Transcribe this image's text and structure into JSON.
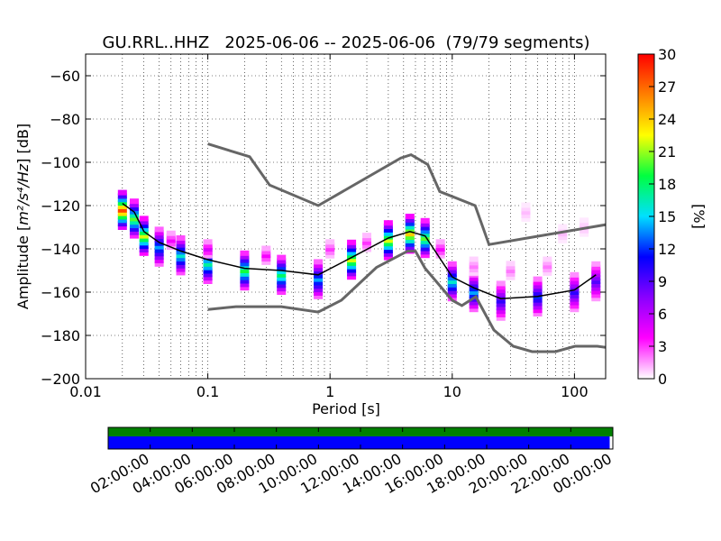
{
  "chart_data": [
    {
      "type": "heatmap",
      "title": "GU.RRL..HHZ   2025-06-06 -- 2025-06-06  (79/79 segments)",
      "xlabel": "Period [s]",
      "ylabel_prefix": "Amplitude [",
      "ylabel_math": "m²/s⁴/Hz",
      "ylabel_suffix": "] [dB]",
      "x_scale": "log",
      "xlim": [
        0.01,
        180
      ],
      "ylim": [
        -200,
        -50
      ],
      "xticks": [
        0.01,
        0.1,
        1,
        10,
        100
      ],
      "xtick_labels": [
        "0.01",
        "0.1",
        "1",
        "10",
        "100"
      ],
      "yticks": [
        -200,
        -180,
        -160,
        -140,
        -120,
        -100,
        -80,
        -60
      ],
      "ytick_labels": [
        "−200",
        "−180",
        "−160",
        "−140",
        "−120",
        "−100",
        "−80",
        "−60"
      ],
      "grid": true,
      "colorbar": {
        "label": "[%]",
        "range": [
          0,
          30
        ],
        "ticks": [
          0,
          3,
          6,
          9,
          12,
          15,
          18,
          21,
          24,
          27,
          30
        ],
        "tick_labels": [
          "0",
          "3",
          "6",
          "9",
          "12",
          "15",
          "18",
          "21",
          "24",
          "27",
          "30"
        ],
        "colormap": [
          "#ffffff",
          "#ff00ff",
          "#8a00ff",
          "#0000ff",
          "#00e0ff",
          "#00ff40",
          "#ffff00",
          "#ff8000",
          "#ff0000"
        ]
      },
      "reference_curves": {
        "color": "#666666",
        "high_noise_model": {
          "x": [
            0.1,
            0.22,
            0.32,
            0.8,
            3.8,
            4.6,
            6.3,
            7.9,
            15.4,
            20,
            354.8
          ],
          "y": [
            -91.5,
            -97.4,
            -110.5,
            -120,
            -98,
            -96.5,
            -101,
            -113.5,
            -120,
            -138,
            -126
          ]
        },
        "low_noise_model": {
          "x": [
            0.1,
            0.17,
            0.4,
            0.8,
            1.24,
            2.4,
            4.3,
            5.0,
            6.0,
            10.0,
            12.0,
            15.6,
            21.9,
            31.6,
            45,
            70,
            101,
            154,
            328
          ],
          "y": [
            -168,
            -166.7,
            -166.7,
            -169.2,
            -163.7,
            -148.6,
            -141.1,
            -141.1,
            -149,
            -163.8,
            -166.2,
            -162.1,
            -177.5,
            -185,
            -187.5,
            -187.5,
            -185,
            -185,
            -187.5
          ]
        }
      },
      "mean_curve": {
        "color": "#000000",
        "x": [
          0.02,
          0.025,
          0.03,
          0.04,
          0.06,
          0.1,
          0.2,
          0.4,
          0.8,
          1.5,
          3,
          4.5,
          6,
          10,
          15,
          25,
          50,
          100,
          150
        ],
        "y": [
          -119,
          -123,
          -132,
          -137,
          -141,
          -145,
          -149,
          -150,
          -152,
          -144,
          -135,
          -132,
          -134,
          -153,
          -158,
          -163,
          -162,
          -159,
          -152
        ]
      },
      "density": [
        {
          "x": 0.02,
          "y": -122,
          "p": 28
        },
        {
          "x": 0.025,
          "y": -126,
          "p": 20
        },
        {
          "x": 0.03,
          "y": -134,
          "p": 22
        },
        {
          "x": 0.04,
          "y": -139,
          "p": 14
        },
        {
          "x": 0.06,
          "y": -143,
          "p": 16
        },
        {
          "x": 0.1,
          "y": -147,
          "p": 17
        },
        {
          "x": 0.2,
          "y": -150,
          "p": 19
        },
        {
          "x": 0.4,
          "y": -152,
          "p": 18
        },
        {
          "x": 0.8,
          "y": -154,
          "p": 14
        },
        {
          "x": 1.5,
          "y": -145,
          "p": 22
        },
        {
          "x": 3,
          "y": -136,
          "p": 22
        },
        {
          "x": 4.5,
          "y": -133,
          "p": 24
        },
        {
          "x": 6,
          "y": -135,
          "p": 20
        },
        {
          "x": 10,
          "y": -155,
          "p": 16
        },
        {
          "x": 15,
          "y": -160,
          "p": 14
        },
        {
          "x": 25,
          "y": -164,
          "p": 10
        },
        {
          "x": 50,
          "y": -162,
          "p": 12
        },
        {
          "x": 100,
          "y": -160,
          "p": 10
        },
        {
          "x": 150,
          "y": -155,
          "p": 9
        },
        {
          "x": 0.05,
          "y": -136,
          "p": 4
        },
        {
          "x": 0.1,
          "y": -140,
          "p": 5
        },
        {
          "x": 0.3,
          "y": -143,
          "p": 4
        },
        {
          "x": 1,
          "y": -140,
          "p": 3
        },
        {
          "x": 2,
          "y": -137,
          "p": 3
        },
        {
          "x": 8,
          "y": -140,
          "p": 4
        },
        {
          "x": 15,
          "y": -148,
          "p": 2
        },
        {
          "x": 30,
          "y": -150,
          "p": 2
        },
        {
          "x": 60,
          "y": -148,
          "p": 2
        },
        {
          "x": 120,
          "y": -130,
          "p": 1
        },
        {
          "x": 40,
          "y": -123,
          "p": 1
        },
        {
          "x": 80,
          "y": -133,
          "p": 1
        }
      ]
    },
    {
      "type": "timeline",
      "tick_labels": [
        "02:00:00",
        "04:00:00",
        "06:00:00",
        "08:00:00",
        "10:00:00",
        "12:00:00",
        "14:00:00",
        "16:00:00",
        "18:00:00",
        "20:00:00",
        "22:00:00",
        "00:00:00"
      ],
      "tick_hours": [
        2,
        4,
        6,
        8,
        10,
        12,
        14,
        16,
        18,
        20,
        22,
        24
      ],
      "range_hours": [
        0,
        24
      ],
      "rows": [
        {
          "color": "#008000",
          "start_hour": 0,
          "end_hour": 24
        },
        {
          "color": "#0000ff",
          "start_hour": 0,
          "end_hour": 23.85
        }
      ]
    }
  ]
}
